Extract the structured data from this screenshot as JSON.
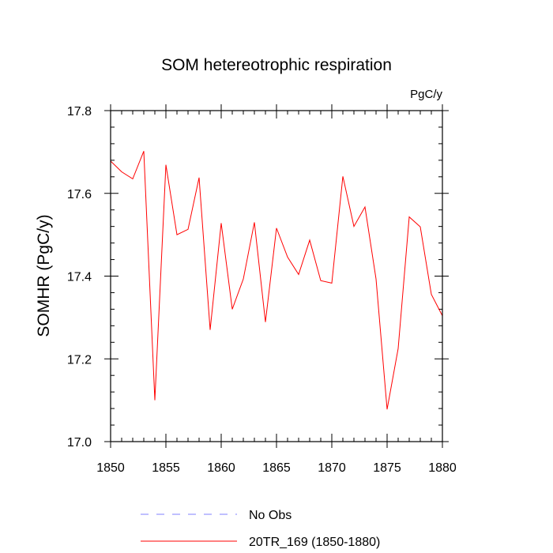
{
  "chart_data": {
    "type": "line",
    "title": "SOM hetereotrophic respiration",
    "units": "PgC/y",
    "xlabel": "",
    "ylabel": "SOMHR  (PgC/y)",
    "xlim": [
      1850,
      1880
    ],
    "ylim": [
      17.0,
      17.8
    ],
    "x_ticks": [
      1850,
      1855,
      1860,
      1865,
      1870,
      1875,
      1880
    ],
    "x_tick_labels": [
      "1850",
      "1855",
      "1860",
      "1865",
      "1870",
      "1875",
      "1880"
    ],
    "y_ticks": [
      17.0,
      17.2,
      17.4,
      17.6,
      17.8
    ],
    "y_tick_labels": [
      "17.0",
      "17.2",
      "17.4",
      "17.6",
      "17.8"
    ],
    "grid": false,
    "legend_position": "bottom",
    "series": [
      {
        "name": "No Obs",
        "color": "#8080ff",
        "style": "dashed",
        "x": [],
        "values": []
      },
      {
        "name": "20TR_169 (1850-1880)",
        "color": "#ff0000",
        "style": "solid",
        "x": [
          1850,
          1851,
          1852,
          1853,
          1854,
          1855,
          1856,
          1857,
          1858,
          1859,
          1860,
          1861,
          1862,
          1863,
          1864,
          1865,
          1866,
          1867,
          1868,
          1869,
          1870,
          1871,
          1872,
          1873,
          1874,
          1875,
          1876,
          1877,
          1878,
          1879,
          1880
        ],
        "values": [
          17.678,
          17.652,
          17.635,
          17.702,
          17.1,
          17.669,
          17.5,
          17.513,
          17.638,
          17.27,
          17.528,
          17.32,
          17.393,
          17.53,
          17.289,
          17.516,
          17.446,
          17.404,
          17.487,
          17.389,
          17.383,
          17.641,
          17.52,
          17.567,
          17.393,
          17.078,
          17.225,
          17.543,
          17.519,
          17.356,
          17.304
        ]
      }
    ]
  }
}
